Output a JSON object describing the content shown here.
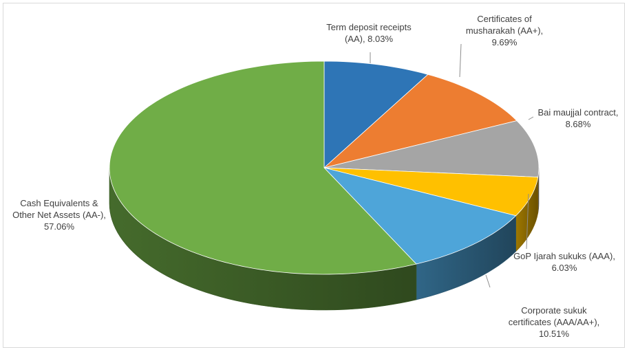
{
  "chart_data": {
    "type": "pie",
    "title": "",
    "legend": "none",
    "three_d": true,
    "slices": [
      {
        "label_lines": [
          "Term deposit receipts",
          "(AA), 8.03%"
        ],
        "value": 8.03,
        "color": "#2e75b6"
      },
      {
        "label_lines": [
          "Certificates of",
          "musharakah (AA+),",
          "9.69%"
        ],
        "value": 9.69,
        "color": "#ed7d31"
      },
      {
        "label_lines": [
          "Bai maujjal contract,",
          "8.68%"
        ],
        "value": 8.68,
        "color": "#a5a5a5"
      },
      {
        "label_lines": [
          "GoP Ijarah sukuks (AAA),",
          "6.03%"
        ],
        "value": 6.03,
        "color": "#ffc000"
      },
      {
        "label_lines": [
          "Corporate sukuk",
          "certificates (AAA/AA+),",
          "10.51%"
        ],
        "value": 10.51,
        "color": "#4ea5d9"
      },
      {
        "label_lines": [
          "Cash Equivalents &",
          "Other Net Assets (AA-),",
          "57.06%"
        ],
        "value": 57.06,
        "color": "#70ad47"
      }
    ]
  }
}
